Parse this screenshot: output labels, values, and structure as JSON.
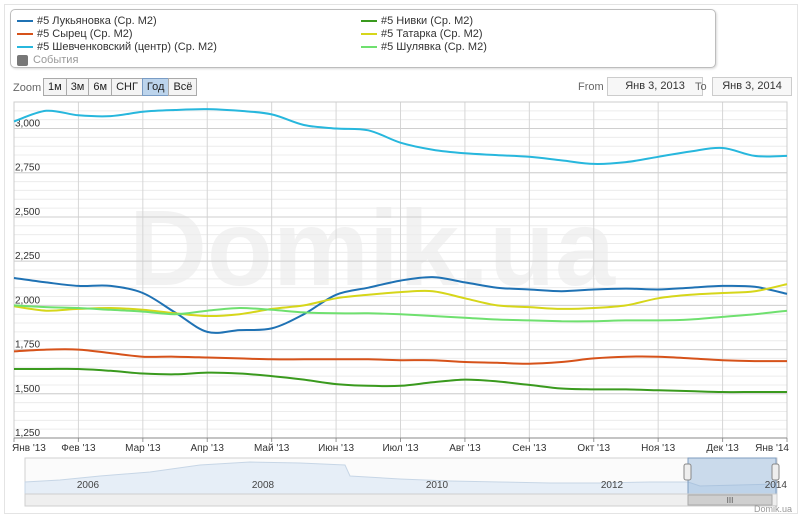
{
  "legend": {
    "items": [
      {
        "label": "#5 Лукьяновка (Ср. М2)",
        "color": "#1f72b4"
      },
      {
        "label": "#5 Нивки (Ср. М2)",
        "color": "#3a9a1e"
      },
      {
        "label": "#5 Сырец (Ср. М2)",
        "color": "#d6521a"
      },
      {
        "label": "#5 Татарка (Ср. М2)",
        "color": "#d6d61a"
      },
      {
        "label": "#5 Шевченковский (центр) (Ср. М2)",
        "color": "#27b7dd"
      },
      {
        "label": "#5 Шулявка (Ср. М2)",
        "color": "#6fe06f"
      }
    ],
    "events_label": "События"
  },
  "zoom": {
    "label": "Zoom",
    "buttons": [
      "1м",
      "3м",
      "6м",
      "СНГ",
      "Год",
      "Всё"
    ],
    "active": "Год"
  },
  "range": {
    "from_label": "From",
    "from_value": "Янв 3, 2013",
    "to_label": "To",
    "to_value": "Янв 3, 2014"
  },
  "watermark": "Domik.ua",
  "credit": "Domik.ua",
  "navigator": {
    "years": [
      "2006",
      "2008",
      "2010",
      "2012",
      "2014"
    ],
    "handle_label": "III"
  },
  "chart_data": {
    "type": "line",
    "title": "",
    "xlabel": "",
    "ylabel": "",
    "ylim": [
      1250,
      3150
    ],
    "yticks": [
      1250,
      1500,
      1750,
      2000,
      2250,
      2500,
      2750,
      3000
    ],
    "ytick_labels": [
      "1,250",
      "1,500",
      "1,750",
      "2,000",
      "2,250",
      "2,500",
      "2,750",
      "3,000"
    ],
    "x_labels": [
      "Янв '13",
      "Фев '13",
      "Мар '13",
      "Апр '13",
      "Май '13",
      "Июн '13",
      "Июл '13",
      "Авг '13",
      "Сен '13",
      "Окт '13",
      "Ноя '13",
      "Дек '13",
      "Янв '14"
    ],
    "x_points": [
      "Янв 3, 2013",
      "Янв 17, 2013",
      "Фев 1, 2013",
      "Фев 15, 2013",
      "Мар 1, 2013",
      "Мар 15, 2013",
      "Апр 1, 2013",
      "Апр 15, 2013",
      "Май 1, 2013",
      "Май 15, 2013",
      "Июн 1, 2013",
      "Июн 15, 2013",
      "Июл 1, 2013",
      "Июл 15, 2013",
      "Авг 1, 2013",
      "Авг 15, 2013",
      "Сен 1, 2013",
      "Сен 15, 2013",
      "Окт 1, 2013",
      "Окт 15, 2013",
      "Ноя 1, 2013",
      "Ноя 15, 2013",
      "Дек 1, 2013",
      "Дек 15, 2013",
      "Янв 3, 2014"
    ],
    "grid": true,
    "legend_position": "top",
    "series": [
      {
        "name": "#5 Шевченковский (центр) (Ср. М2)",
        "color": "#27b7dd",
        "values": [
          3040,
          3100,
          3075,
          3070,
          3095,
          3105,
          3110,
          3100,
          3080,
          3020,
          3000,
          2990,
          2920,
          2880,
          2860,
          2850,
          2840,
          2820,
          2800,
          2810,
          2840,
          2870,
          2890,
          2845,
          2845
        ]
      },
      {
        "name": "#5 Лукьяновка (Ср. М2)",
        "color": "#1f72b4",
        "values": [
          2155,
          2130,
          2110,
          2110,
          2070,
          1960,
          1850,
          1860,
          1870,
          1950,
          2060,
          2100,
          2140,
          2160,
          2130,
          2100,
          2090,
          2080,
          2090,
          2095,
          2090,
          2100,
          2110,
          2105,
          2065
        ]
      },
      {
        "name": "#5 Татарка (Ср. М2)",
        "color": "#d6d61a",
        "values": [
          1995,
          1970,
          1980,
          1985,
          1975,
          1955,
          1940,
          1950,
          1980,
          2000,
          2040,
          2060,
          2075,
          2080,
          2040,
          2000,
          1990,
          1980,
          1985,
          2000,
          2040,
          2060,
          2070,
          2080,
          2120
        ]
      },
      {
        "name": "#5 Шулявка (Ср. М2)",
        "color": "#6fe06f",
        "values": [
          2000,
          1990,
          1985,
          1975,
          1965,
          1950,
          1970,
          1985,
          1975,
          1960,
          1955,
          1955,
          1950,
          1940,
          1930,
          1920,
          1915,
          1910,
          1910,
          1915,
          1915,
          1920,
          1935,
          1950,
          1970
        ]
      },
      {
        "name": "#5 Сырец (Ср. М2)",
        "color": "#d6521a",
        "values": [
          1740,
          1750,
          1750,
          1730,
          1710,
          1710,
          1705,
          1700,
          1695,
          1695,
          1695,
          1695,
          1690,
          1690,
          1680,
          1675,
          1670,
          1680,
          1700,
          1710,
          1710,
          1700,
          1690,
          1685,
          1685
        ]
      },
      {
        "name": "#5 Нивки (Ср. М2)",
        "color": "#3a9a1e",
        "values": [
          1640,
          1640,
          1640,
          1630,
          1615,
          1610,
          1620,
          1615,
          1600,
          1580,
          1555,
          1545,
          1545,
          1565,
          1580,
          1570,
          1550,
          1530,
          1525,
          1525,
          1520,
          1515,
          1510,
          1510,
          1510
        ]
      }
    ]
  }
}
